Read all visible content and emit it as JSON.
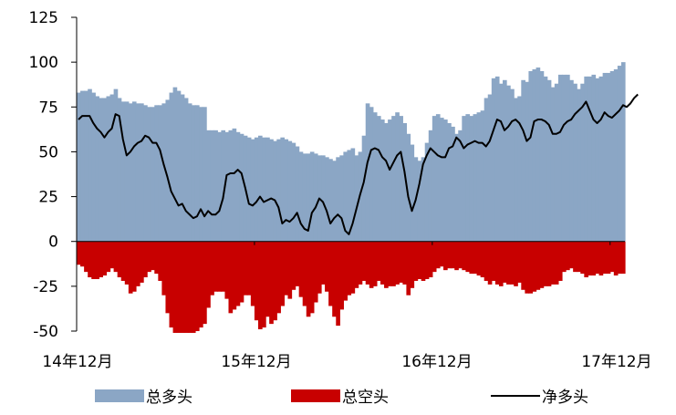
{
  "chart_data": {
    "type": "area",
    "title": "",
    "xlabel": "",
    "ylabel": "",
    "ylim": [
      -50,
      125
    ],
    "y_ticks": [
      "125",
      "100",
      "75",
      "50",
      "25",
      "0",
      "-25",
      "-50"
    ],
    "x_tick_labels": [
      "14年12月",
      "15年12月",
      "16年12月",
      "17年12月"
    ],
    "legend_position": "bottom",
    "grid": false,
    "series": [
      {
        "name": "总多头",
        "type": "bar",
        "color": "#8ba6c5",
        "values": [
          83,
          84,
          84,
          85,
          83,
          81,
          80,
          80,
          81,
          82,
          85,
          80,
          78,
          78,
          77,
          78,
          77,
          77,
          76,
          75,
          75,
          76,
          76,
          77,
          79,
          83,
          86,
          84,
          82,
          80,
          77,
          76,
          76,
          75,
          75,
          62,
          62,
          62,
          61,
          62,
          61,
          62,
          63,
          61,
          60,
          59,
          58,
          57,
          58,
          59,
          58,
          58,
          57,
          56,
          57,
          58,
          57,
          56,
          55,
          53,
          50,
          49,
          49,
          50,
          49,
          48,
          48,
          47,
          46,
          45,
          47,
          48,
          50,
          51,
          52,
          48,
          50,
          59,
          77,
          75,
          72,
          70,
          68,
          66,
          68,
          70,
          72,
          70,
          66,
          60,
          54,
          47,
          45,
          47,
          55,
          62,
          70,
          71,
          69,
          68,
          66,
          64,
          60,
          62,
          70,
          71,
          70,
          71,
          72,
          73,
          80,
          82,
          91,
          92,
          88,
          90,
          87,
          85,
          80,
          81,
          90,
          89,
          95,
          96,
          97,
          95,
          92,
          90,
          86,
          88,
          93,
          93,
          93,
          90,
          88,
          85,
          88,
          92,
          92,
          93,
          91,
          92,
          94,
          94,
          95,
          96,
          98,
          100
        ]
      },
      {
        "name": "总空头",
        "type": "bar",
        "color": "#c80000",
        "values": [
          -13,
          -14,
          -17,
          -20,
          -21,
          -21,
          -20,
          -19,
          -17,
          -15,
          -17,
          -20,
          -22,
          -24,
          -29,
          -28,
          -25,
          -23,
          -20,
          -17,
          -16,
          -18,
          -22,
          -30,
          -40,
          -48,
          -51,
          -51,
          -51,
          -51,
          -51,
          -51,
          -50,
          -48,
          -46,
          -37,
          -30,
          -28,
          -28,
          -28,
          -32,
          -40,
          -38,
          -36,
          -34,
          -30,
          -30,
          -36,
          -44,
          -49,
          -48,
          -42,
          -46,
          -44,
          -40,
          -36,
          -30,
          -32,
          -27,
          -25,
          -31,
          -36,
          -42,
          -40,
          -34,
          -29,
          -24,
          -28,
          -36,
          -42,
          -47,
          -38,
          -33,
          -30,
          -29,
          -26,
          -24,
          -22,
          -24,
          -26,
          -25,
          -22,
          -24,
          -26,
          -25,
          -25,
          -24,
          -23,
          -24,
          -30,
          -26,
          -22,
          -21,
          -22,
          -21,
          -20,
          -17,
          -15,
          -14,
          -16,
          -15,
          -15,
          -16,
          -15,
          -16,
          -17,
          -18,
          -18,
          -19,
          -20,
          -22,
          -24,
          -22,
          -24,
          -25,
          -23,
          -24,
          -24,
          -25,
          -23,
          -27,
          -29,
          -29,
          -28,
          -27,
          -26,
          -25,
          -25,
          -24,
          -24,
          -22,
          -17,
          -16,
          -15,
          -17,
          -17,
          -18,
          -20,
          -19,
          -19,
          -18,
          -19,
          -18,
          -18,
          -17,
          -19,
          -18,
          -18
        ]
      },
      {
        "name": "净多头",
        "type": "line",
        "color": "#000000",
        "values": [
          68,
          70,
          70,
          70,
          66,
          63,
          61,
          58,
          61,
          63,
          71,
          70,
          57,
          48,
          50,
          53,
          55,
          56,
          59,
          58,
          55,
          55,
          51,
          43,
          36,
          28,
          24,
          20,
          21,
          17,
          15,
          13,
          14,
          18,
          14,
          17,
          15,
          15,
          17,
          24,
          37,
          38,
          38,
          40,
          38,
          30,
          21,
          20,
          22,
          25,
          22,
          23,
          24,
          23,
          19,
          10,
          12,
          11,
          13,
          16,
          10,
          7,
          6,
          16,
          19,
          24,
          22,
          17,
          10,
          13,
          15,
          13,
          6,
          4,
          10,
          18,
          26,
          33,
          44,
          51,
          52,
          51,
          47,
          45,
          40,
          44,
          48,
          50,
          39,
          25,
          17,
          23,
          32,
          43,
          48,
          52,
          50,
          48,
          47,
          47,
          52,
          53,
          58,
          56,
          52,
          54,
          55,
          56,
          55,
          55,
          53,
          56,
          62,
          68,
          67,
          62,
          64,
          67,
          68,
          66,
          62,
          56,
          58,
          67,
          68,
          68,
          67,
          65,
          60,
          60,
          61,
          65,
          67,
          68,
          71,
          73,
          75,
          78,
          73,
          68,
          66,
          68,
          72,
          70,
          69,
          71,
          73,
          76,
          75,
          77,
          80,
          82
        ]
      }
    ]
  },
  "legend": [
    {
      "label": "总多头",
      "color": "#8ba6c5",
      "icon": "swatch"
    },
    {
      "label": "总空头",
      "color": "#c80000",
      "icon": "swatch"
    },
    {
      "label": "净多头",
      "color": "#000000",
      "icon": "line"
    }
  ]
}
